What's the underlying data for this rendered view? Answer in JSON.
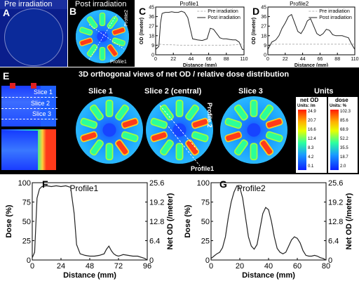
{
  "panel_a": {
    "letter": "A",
    "title": "Pre irradiation"
  },
  "panel_b": {
    "letter": "B",
    "title": "Post irradiation",
    "profile1": "Profile1",
    "profile2": "Profile2"
  },
  "panel_e": {
    "letter": "E",
    "title": "3D orthogonal views of net OD / relative dose distribution",
    "slice1_side": "Slice 1",
    "slice2_side": "Slice 2",
    "slice3_side": "Slice 3",
    "slice1": "Slice 1",
    "slice2": "Slice 2 (central)",
    "slice3": "Slice 3",
    "units": "Units",
    "profile2_label": "Profile 2",
    "profile1_label": "Profile1",
    "netod_title": "net OD",
    "netod_units": "Units: /m",
    "netod_ticks": [
      "24.9",
      "20.7",
      "16.6",
      "12.4",
      "8.3",
      "4.2",
      "0.1"
    ],
    "dose_title": "dose",
    "dose_units": "Units: %",
    "dose_ticks": [
      "102.3",
      "85.6",
      "68.9",
      "52.2",
      "35.5",
      "18.7",
      "2.0"
    ]
  },
  "colors": {
    "background_black": "#000000",
    "panel_blue": "#0a1e8c",
    "curve": "#222222",
    "pre_curve": "#b4b4b4"
  },
  "chart_data": [
    {
      "panel": "C",
      "type": "line",
      "title": "Profile1",
      "xlabel": "Distance (mm)",
      "ylabel": "OD (/meter)",
      "xlim": [
        0,
        110
      ],
      "ylim": [
        0,
        45
      ],
      "xticks": [
        "0",
        "22",
        "44",
        "66",
        "88",
        "110"
      ],
      "yticks": [
        "0",
        "9",
        "18",
        "27",
        "36",
        "45"
      ],
      "series": [
        {
          "name": "Pre irradiation",
          "x": [
            0,
            5,
            10,
            20,
            30,
            40,
            50,
            60,
            70,
            80,
            90,
            100,
            105,
            110
          ],
          "values": [
            10,
            10,
            9.5,
            9.5,
            9,
            9,
            9,
            9,
            9,
            9,
            9,
            9.5,
            10,
            10
          ]
        },
        {
          "name": "Post irradiation",
          "x": [
            0,
            4,
            6,
            8,
            12,
            16,
            20,
            24,
            28,
            32,
            36,
            40,
            46,
            52,
            58,
            64,
            68,
            72,
            76,
            80,
            84,
            88,
            92,
            96,
            100,
            104,
            108,
            110
          ],
          "values": [
            5,
            8,
            30,
            39,
            40,
            40,
            40.5,
            40,
            40,
            41,
            40,
            35,
            15,
            14,
            13.5,
            15,
            25,
            24,
            20,
            16,
            15,
            15,
            14.5,
            14,
            14,
            12,
            5,
            5
          ]
        }
      ]
    },
    {
      "panel": "D",
      "type": "line",
      "title": "Profile2",
      "xlabel": "Distance (mm)",
      "ylabel": "OD (/meter)",
      "xlim": [
        0,
        110
      ],
      "ylim": [
        0,
        45
      ],
      "xticks": [
        "0",
        "22",
        "44",
        "66",
        "88",
        "110"
      ],
      "yticks": [
        "0",
        "9",
        "18",
        "27",
        "36",
        "45"
      ],
      "series": [
        {
          "name": "Pre irradiation",
          "x": [
            0,
            5,
            10,
            20,
            30,
            40,
            50,
            60,
            70,
            80,
            90,
            100,
            105,
            110
          ],
          "values": [
            10,
            10,
            10,
            10,
            10,
            10,
            10,
            10,
            10,
            10,
            10,
            10,
            10,
            10
          ]
        },
        {
          "name": "Post irradiation",
          "x": [
            0,
            5,
            10,
            14,
            18,
            22,
            26,
            30,
            34,
            38,
            42,
            46,
            50,
            54,
            58,
            62,
            66,
            70,
            74,
            78,
            82,
            86,
            90,
            94,
            98,
            102,
            106,
            110
          ],
          "values": [
            5,
            12,
            14,
            18,
            25,
            30,
            36,
            38,
            30,
            22,
            20,
            25,
            32,
            34,
            27,
            20,
            18,
            20,
            24,
            23,
            19,
            18,
            18,
            18,
            17,
            16,
            10,
            5
          ]
        }
      ]
    },
    {
      "panel": "F",
      "type": "line",
      "title": "Profile1",
      "xlabel": "Distance (mm)",
      "ylabel": "Dose (%)",
      "y2label": "Net OD (/meter)",
      "xlim": [
        0,
        96
      ],
      "ylim": [
        0,
        100
      ],
      "y2lim": [
        0,
        25.6
      ],
      "xticks": [
        "0",
        "24",
        "48",
        "72",
        "96"
      ],
      "yticks": [
        "0",
        "25",
        "50",
        "75",
        "100"
      ],
      "y2ticks": [
        "0",
        "6.4",
        "12.8",
        "19.2",
        "25.6"
      ],
      "series": [
        {
          "name": "Profile1",
          "x": [
            0,
            2,
            4,
            6,
            8,
            12,
            16,
            20,
            24,
            28,
            32,
            35,
            37,
            40,
            44,
            48,
            52,
            56,
            60,
            62,
            64,
            66,
            68,
            70,
            72,
            74,
            76,
            80,
            84,
            88,
            92,
            94,
            96
          ],
          "values": [
            3,
            10,
            80,
            92,
            95,
            96,
            95,
            96,
            95,
            96,
            94,
            60,
            20,
            8,
            6,
            5,
            5,
            6,
            8,
            14,
            18,
            12,
            8,
            6,
            5,
            6,
            7,
            6,
            5,
            5,
            3,
            2,
            0
          ]
        }
      ]
    },
    {
      "panel": "G",
      "type": "line",
      "title": "Profile2",
      "xlabel": "Distance (mm)",
      "ylabel": "Dose (%)",
      "y2label": "Net OD (/meter)",
      "xlim": [
        0,
        80
      ],
      "ylim": [
        0,
        100
      ],
      "y2lim": [
        0,
        25.6
      ],
      "xticks": [
        "0",
        "20",
        "40",
        "60",
        "80"
      ],
      "yticks": [
        "0",
        "25",
        "50",
        "75",
        "100"
      ],
      "y2ticks": [
        "0",
        "6.4",
        "12.8",
        "19.2",
        "25.6"
      ],
      "series": [
        {
          "name": "Profile2",
          "x": [
            0,
            2,
            4,
            6,
            8,
            10,
            12,
            14,
            16,
            18,
            20,
            22,
            24,
            26,
            28,
            30,
            32,
            34,
            36,
            38,
            40,
            42,
            44,
            46,
            48,
            50,
            52,
            54,
            56,
            58,
            60,
            62,
            64,
            66,
            68,
            70,
            72,
            74,
            76,
            78,
            80
          ],
          "values": [
            2,
            5,
            8,
            10,
            16,
            30,
            55,
            75,
            88,
            96,
            94,
            80,
            55,
            30,
            18,
            14,
            20,
            40,
            60,
            68,
            65,
            50,
            30,
            15,
            10,
            8,
            10,
            18,
            26,
            30,
            28,
            22,
            12,
            6,
            5,
            5,
            6,
            5,
            3,
            2,
            0
          ]
        }
      ]
    }
  ]
}
